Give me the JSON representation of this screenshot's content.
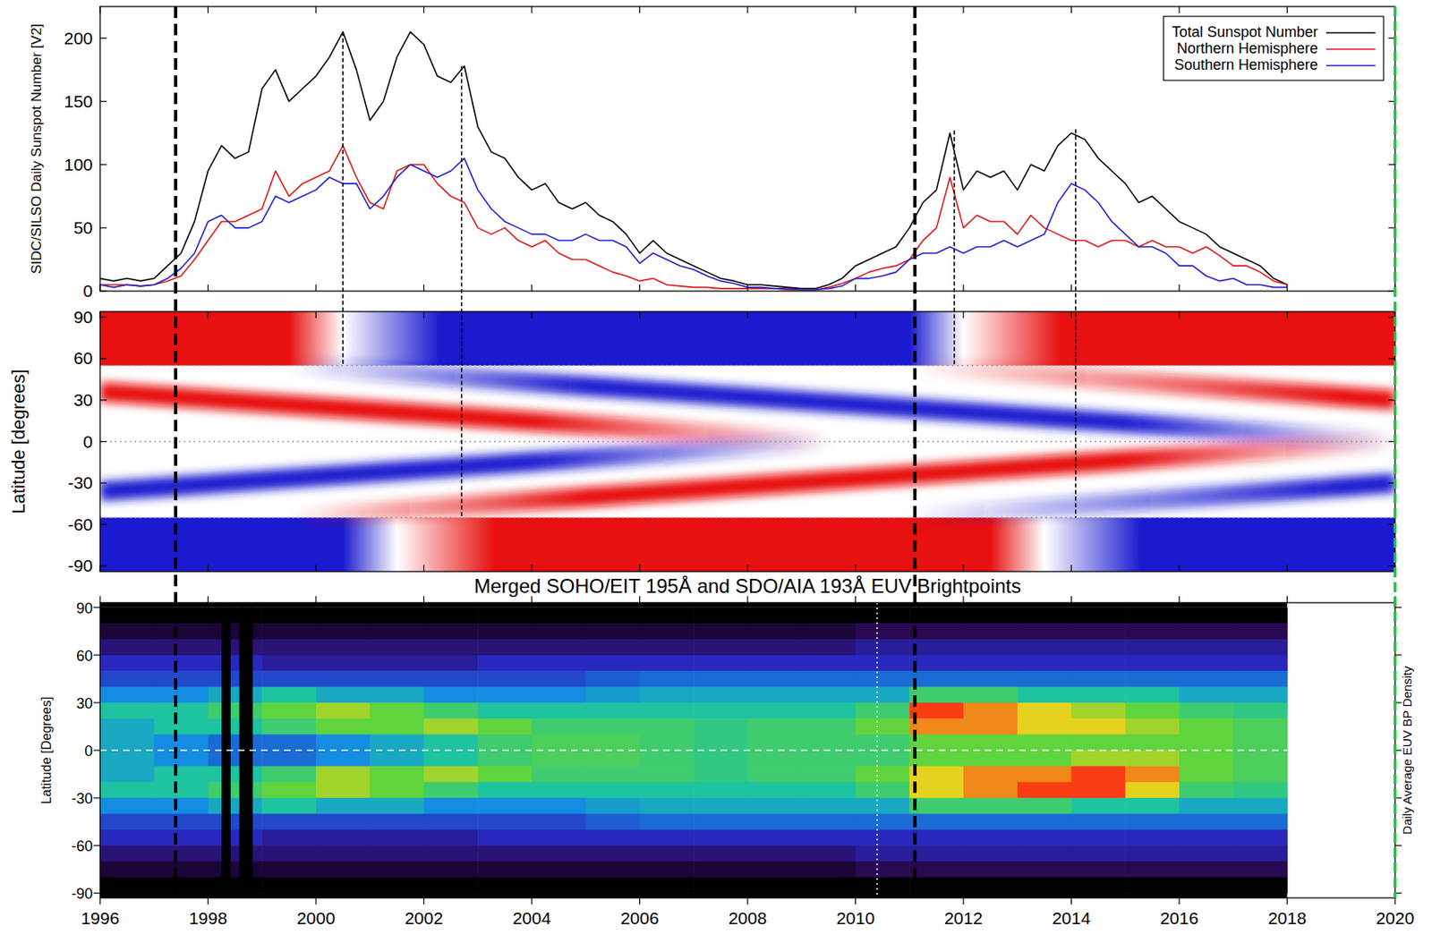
{
  "chart_data": [
    {
      "type": "line",
      "ylabel": "SIDC/SILSO Daily Sunspot Number [V2]",
      "x": [
        1996.0,
        1996.25,
        1996.5,
        1996.75,
        1997.0,
        1997.25,
        1997.5,
        1997.75,
        1998.0,
        1998.25,
        1998.5,
        1998.75,
        1999.0,
        1999.25,
        1999.5,
        1999.75,
        2000.0,
        2000.25,
        2000.5,
        2000.75,
        2001.0,
        2001.25,
        2001.5,
        2001.75,
        2002.0,
        2002.25,
        2002.5,
        2002.75,
        2003.0,
        2003.25,
        2003.5,
        2003.75,
        2004.0,
        2004.25,
        2004.5,
        2004.75,
        2005.0,
        2005.25,
        2005.5,
        2005.75,
        2006.0,
        2006.25,
        2006.5,
        2006.75,
        2007.0,
        2007.25,
        2007.5,
        2007.75,
        2008.0,
        2008.25,
        2008.5,
        2008.75,
        2009.0,
        2009.25,
        2009.5,
        2009.75,
        2010.0,
        2010.25,
        2010.5,
        2010.75,
        2011.0,
        2011.25,
        2011.5,
        2011.75,
        2012.0,
        2012.25,
        2012.5,
        2012.75,
        2013.0,
        2013.25,
        2013.5,
        2013.75,
        2014.0,
        2014.25,
        2014.5,
        2014.75,
        2015.0,
        2015.25,
        2015.5,
        2015.75,
        2016.0,
        2016.25,
        2016.5,
        2016.75,
        2017.0,
        2017.25,
        2017.5,
        2017.75,
        2018.0
      ],
      "series": [
        {
          "name": "Total Sunspot Number",
          "color": "#000000",
          "values": [
            10,
            8,
            10,
            8,
            10,
            20,
            30,
            55,
            95,
            115,
            105,
            110,
            160,
            175,
            150,
            160,
            170,
            185,
            205,
            175,
            135,
            150,
            185,
            205,
            195,
            170,
            165,
            178,
            130,
            110,
            105,
            90,
            80,
            85,
            70,
            65,
            70,
            60,
            55,
            45,
            30,
            40,
            30,
            25,
            20,
            15,
            10,
            8,
            5,
            5,
            4,
            3,
            2,
            2,
            5,
            10,
            20,
            25,
            30,
            35,
            50,
            70,
            80,
            125,
            80,
            95,
            90,
            95,
            80,
            100,
            95,
            115,
            125,
            120,
            105,
            95,
            85,
            70,
            75,
            65,
            55,
            50,
            45,
            35,
            30,
            25,
            20,
            10,
            5
          ]
        },
        {
          "name": "Northern Hemisphere",
          "color": "#e01818",
          "values": [
            5,
            5,
            5,
            4,
            5,
            8,
            12,
            25,
            40,
            55,
            55,
            60,
            65,
            95,
            75,
            85,
            90,
            95,
            115,
            90,
            70,
            65,
            95,
            100,
            100,
            85,
            75,
            70,
            50,
            45,
            50,
            40,
            35,
            40,
            30,
            25,
            25,
            20,
            15,
            12,
            8,
            10,
            5,
            4,
            3,
            3,
            2,
            2,
            2,
            2,
            2,
            1,
            1,
            1,
            3,
            6,
            10,
            15,
            18,
            20,
            25,
            40,
            50,
            90,
            50,
            60,
            55,
            55,
            45,
            60,
            50,
            45,
            40,
            40,
            35,
            40,
            40,
            35,
            40,
            35,
            35,
            30,
            35,
            28,
            20,
            20,
            15,
            8,
            5
          ]
        },
        {
          "name": "Southern Hemisphere",
          "color": "#2020d0",
          "values": [
            5,
            3,
            5,
            4,
            5,
            10,
            18,
            30,
            55,
            60,
            50,
            50,
            55,
            75,
            70,
            75,
            80,
            90,
            85,
            85,
            65,
            75,
            90,
            100,
            95,
            90,
            95,
            105,
            80,
            65,
            55,
            50,
            45,
            45,
            40,
            40,
            45,
            40,
            40,
            35,
            22,
            30,
            25,
            20,
            17,
            12,
            8,
            6,
            3,
            3,
            2,
            2,
            1,
            1,
            2,
            4,
            10,
            10,
            12,
            15,
            25,
            30,
            30,
            35,
            30,
            35,
            35,
            40,
            35,
            40,
            45,
            70,
            85,
            80,
            70,
            55,
            45,
            35,
            35,
            30,
            20,
            20,
            12,
            8,
            10,
            5,
            5,
            3,
            3
          ]
        }
      ],
      "xlim": [
        1996,
        2020
      ],
      "xticks": [
        1996,
        1998,
        2000,
        2002,
        2004,
        2006,
        2008,
        2010,
        2012,
        2014,
        2016,
        2018,
        2020
      ],
      "ylim": [
        0,
        225
      ],
      "yticks": [
        0,
        50,
        100,
        150,
        200
      ],
      "tick_labels": "y",
      "legend": "upper right",
      "cycle_lines": [
        1997.4,
        2011.1
      ],
      "end_line": 2020,
      "markers": [
        {
          "x": 2000.5,
          "from": 205,
          "to_latitude": 55
        },
        {
          "x": 2002.7,
          "from": 178,
          "to_latitude": -55
        },
        {
          "x": 2011.83,
          "from": 127,
          "to_latitude": 55
        },
        {
          "x": 2014.08,
          "from": 128,
          "to_latitude": -55
        }
      ]
    },
    {
      "type": "band",
      "ylabel": "Latitude [degrees]",
      "xlim": [
        1996,
        2020
      ],
      "xticks": [
        1996,
        1998,
        2000,
        2002,
        2004,
        2006,
        2008,
        2010,
        2012,
        2014,
        2016,
        2018,
        2020
      ],
      "ylim": [
        -94,
        94
      ],
      "yticks": [
        90,
        60,
        30,
        0,
        -30,
        -60,
        -90
      ],
      "tick_labels": "y",
      "reference_latitudes": [
        55,
        0,
        -55
      ],
      "polar_fields": [
        {
          "hemisphere": "north",
          "x": [
            1996,
            2000.5
          ],
          "color": "#e81010"
        },
        {
          "hemisphere": "north",
          "x": [
            2000.5,
            2012
          ],
          "color": "#1a1ad0"
        },
        {
          "hemisphere": "north",
          "x": [
            2012,
            2020
          ],
          "color": "#e81010"
        },
        {
          "hemisphere": "south",
          "x": [
            1996,
            2001.5
          ],
          "color": "#1a1ad0"
        },
        {
          "hemisphere": "south",
          "x": [
            2001.5,
            2013.5
          ],
          "color": "#e81010"
        },
        {
          "hemisphere": "south",
          "x": [
            2013.5,
            2020
          ],
          "color": "#1a1ad0"
        }
      ],
      "bands": [
        {
          "x": [
            1996,
            2009.5
          ],
          "latitude": [
            36,
            0
          ],
          "full_strength": [
            1996,
            2004
          ],
          "color": "#e81010"
        },
        {
          "x": [
            1999.5,
            2020
          ],
          "latitude": [
            55,
            0
          ],
          "full_strength": [
            2005,
            2015
          ],
          "color": "#1a1ad0"
        },
        {
          "x": [
            2011,
            2020
          ],
          "latitude": [
            55,
            30
          ],
          "full_strength": [
            2019,
            2020
          ],
          "color": "#e81010"
        },
        {
          "x": [
            1996,
            2009.5
          ],
          "latitude": [
            -36,
            0
          ],
          "full_strength": [
            1996,
            2004
          ],
          "color": "#1a1ad0"
        },
        {
          "x": [
            1999.5,
            2020
          ],
          "latitude": [
            -55,
            0
          ],
          "full_strength": [
            2005,
            2015
          ],
          "color": "#e81010"
        },
        {
          "x": [
            2011,
            2020
          ],
          "latitude": [
            -55,
            -30
          ],
          "full_strength": [
            2019,
            2020
          ],
          "color": "#1a1ad0"
        }
      ]
    },
    {
      "type": "heatmap",
      "title": "Merged SOHO/EIT 195Å and SDO/AIA 193Å EUV Brightpoints",
      "ylabel": "Latitude [Degrees]",
      "colorbar_label": "Daily Average EUV BP Density",
      "xlim": [
        1996,
        2020
      ],
      "xticks": [
        1996,
        1998,
        2000,
        2002,
        2004,
        2006,
        2008,
        2010,
        2012,
        2014,
        2016,
        2018,
        2020
      ],
      "ylim": [
        -93,
        93
      ],
      "yticks": [
        90,
        60,
        30,
        0,
        -30,
        -60,
        -90
      ],
      "x_edges": [
        1996,
        1997,
        1998,
        1999,
        2000,
        2001,
        2002,
        2003,
        2004,
        2005,
        2006,
        2007,
        2008,
        2009,
        2010,
        2011,
        2012,
        2013,
        2014,
        2015,
        2016,
        2017,
        2018
      ],
      "y_edges": [
        90,
        80,
        70,
        60,
        50,
        40,
        30,
        20,
        10,
        0,
        -10,
        -20,
        -30,
        -40,
        -50,
        -60,
        -70,
        -80,
        -90
      ],
      "color_range": [
        0,
        1
      ],
      "cells": [
        [
          0,
          0.1,
          0.2,
          0.3,
          0.35,
          0.45,
          0.55,
          0.5,
          0.5,
          0.5,
          0.5,
          0.55,
          0.45,
          0.35,
          0.3,
          0.2,
          0.1,
          0
        ],
        [
          0,
          0.1,
          0.2,
          0.3,
          0.35,
          0.45,
          0.55,
          0.55,
          0.45,
          0.45,
          0.55,
          0.55,
          0.45,
          0.35,
          0.3,
          0.2,
          0.1,
          0
        ],
        [
          0,
          0.1,
          0.2,
          0.3,
          0.35,
          0.5,
          0.6,
          0.55,
          0.4,
          0.4,
          0.55,
          0.6,
          0.5,
          0.35,
          0.3,
          0.2,
          0.1,
          0
        ],
        [
          0,
          0.1,
          0.2,
          0.25,
          0.35,
          0.55,
          0.65,
          0.6,
          0.4,
          0.4,
          0.6,
          0.65,
          0.55,
          0.35,
          0.25,
          0.2,
          0.1,
          0
        ],
        [
          0,
          0.1,
          0.2,
          0.25,
          0.35,
          0.5,
          0.7,
          0.65,
          0.45,
          0.45,
          0.7,
          0.7,
          0.5,
          0.35,
          0.25,
          0.2,
          0.1,
          0
        ],
        [
          0,
          0.1,
          0.2,
          0.25,
          0.35,
          0.5,
          0.65,
          0.65,
          0.5,
          0.5,
          0.65,
          0.65,
          0.5,
          0.35,
          0.25,
          0.2,
          0.1,
          0
        ],
        [
          0,
          0.1,
          0.2,
          0.25,
          0.35,
          0.45,
          0.6,
          0.7,
          0.55,
          0.55,
          0.7,
          0.6,
          0.45,
          0.35,
          0.25,
          0.2,
          0.1,
          0
        ],
        [
          0,
          0.1,
          0.2,
          0.3,
          0.35,
          0.45,
          0.55,
          0.65,
          0.6,
          0.6,
          0.65,
          0.55,
          0.45,
          0.35,
          0.3,
          0.2,
          0.1,
          0
        ],
        [
          0,
          0.1,
          0.2,
          0.3,
          0.35,
          0.45,
          0.55,
          0.6,
          0.62,
          0.62,
          0.6,
          0.55,
          0.45,
          0.35,
          0.3,
          0.2,
          0.1,
          0
        ],
        [
          0,
          0.1,
          0.2,
          0.3,
          0.38,
          0.48,
          0.55,
          0.6,
          0.62,
          0.62,
          0.6,
          0.55,
          0.48,
          0.38,
          0.3,
          0.2,
          0.1,
          0
        ],
        [
          0,
          0.1,
          0.2,
          0.3,
          0.4,
          0.5,
          0.55,
          0.6,
          0.6,
          0.6,
          0.6,
          0.55,
          0.5,
          0.4,
          0.3,
          0.2,
          0.1,
          0
        ],
        [
          0,
          0.1,
          0.2,
          0.3,
          0.4,
          0.5,
          0.55,
          0.58,
          0.58,
          0.58,
          0.58,
          0.55,
          0.5,
          0.4,
          0.3,
          0.2,
          0.1,
          0
        ],
        [
          0,
          0.1,
          0.2,
          0.3,
          0.4,
          0.5,
          0.55,
          0.6,
          0.6,
          0.6,
          0.6,
          0.55,
          0.5,
          0.4,
          0.3,
          0.2,
          0.1,
          0
        ],
        [
          0,
          0.1,
          0.2,
          0.3,
          0.4,
          0.5,
          0.55,
          0.6,
          0.6,
          0.6,
          0.6,
          0.55,
          0.5,
          0.4,
          0.3,
          0.2,
          0.1,
          0
        ],
        [
          0,
          0.15,
          0.25,
          0.3,
          0.4,
          0.5,
          0.6,
          0.65,
          0.6,
          0.6,
          0.65,
          0.6,
          0.5,
          0.4,
          0.3,
          0.25,
          0.15,
          0
        ],
        [
          0,
          0.15,
          0.25,
          0.3,
          0.4,
          0.6,
          0.85,
          0.8,
          0.65,
          0.65,
          0.75,
          0.75,
          0.6,
          0.4,
          0.3,
          0.25,
          0.15,
          0
        ],
        [
          0,
          0.15,
          0.25,
          0.3,
          0.4,
          0.6,
          0.8,
          0.8,
          0.65,
          0.65,
          0.8,
          0.8,
          0.6,
          0.4,
          0.3,
          0.25,
          0.15,
          0
        ],
        [
          0,
          0.15,
          0.25,
          0.3,
          0.4,
          0.55,
          0.75,
          0.75,
          0.65,
          0.65,
          0.8,
          0.85,
          0.6,
          0.4,
          0.3,
          0.25,
          0.15,
          0
        ],
        [
          0,
          0.15,
          0.25,
          0.3,
          0.4,
          0.55,
          0.7,
          0.75,
          0.65,
          0.7,
          0.85,
          0.85,
          0.55,
          0.4,
          0.3,
          0.25,
          0.15,
          0
        ],
        [
          0,
          0.15,
          0.25,
          0.3,
          0.4,
          0.55,
          0.65,
          0.7,
          0.65,
          0.7,
          0.8,
          0.75,
          0.55,
          0.4,
          0.3,
          0.25,
          0.15,
          0
        ],
        [
          0,
          0.15,
          0.25,
          0.3,
          0.4,
          0.5,
          0.6,
          0.65,
          0.65,
          0.65,
          0.65,
          0.6,
          0.5,
          0.4,
          0.3,
          0.25,
          0.15,
          0
        ],
        [
          0,
          0.15,
          0.25,
          0.3,
          0.4,
          0.5,
          0.58,
          0.62,
          0.62,
          0.62,
          0.62,
          0.58,
          0.5,
          0.4,
          0.3,
          0.25,
          0.15,
          0
        ]
      ],
      "gaps": [
        [
          1998.25,
          1998.42
        ],
        [
          1998.58,
          1998.83
        ]
      ],
      "instrument_change": 2010.4,
      "equator": 0
    }
  ]
}
